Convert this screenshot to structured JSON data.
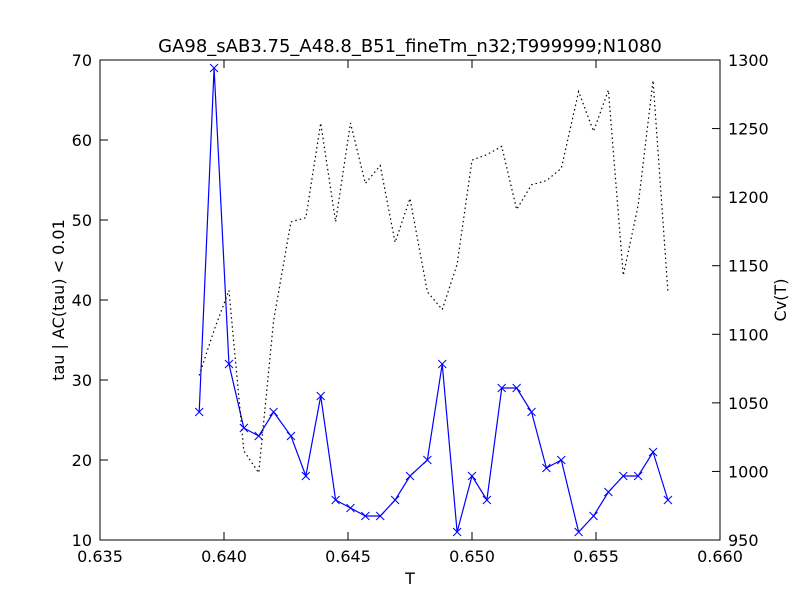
{
  "chart_data": {
    "type": "line",
    "title": "GA98_sAB3.75_A48.8_B51_fineTm_n32;T999999;N1080",
    "xlabel": "T",
    "ylabel": "tau | AC(tau) < 0.01",
    "y2label": "Cv(T)",
    "x": [
      0.639,
      0.6396,
      0.6402,
      0.6408,
      0.6414,
      0.642,
      0.6427,
      0.6433,
      0.6439,
      0.6445,
      0.6451,
      0.6457,
      0.6463,
      0.6469,
      0.6475,
      0.6482,
      0.6488,
      0.6494,
      0.65,
      0.6506,
      0.6512,
      0.6518,
      0.6524,
      0.653,
      0.6536,
      0.6543,
      0.6549,
      0.6555,
      0.6561,
      0.6567,
      0.6573,
      0.6579
    ],
    "series": [
      {
        "color": "#0000ff",
        "marker": "x",
        "linestyle": "solid",
        "values": [
          26,
          69,
          32,
          24,
          23,
          26,
          23,
          18,
          28,
          15,
          14,
          13,
          13,
          15,
          18,
          20,
          32,
          11,
          18,
          15,
          29,
          29,
          26,
          19,
          20,
          11,
          13,
          16,
          18,
          18,
          21,
          15
        ]
      },
      {
        "color": "#000000",
        "linestyle": "dotted",
        "axis": "y2",
        "values": [
          1070,
          1103,
          1132,
          1015,
          999,
          1110,
          1182,
          1185,
          1254,
          1182,
          1254,
          1210,
          1223,
          1167,
          1199,
          1131,
          1118,
          1151,
          1227,
          1231,
          1237,
          1191,
          1209,
          1212,
          1221,
          1277,
          1248,
          1278,
          1143,
          1194,
          1285,
          1131
        ]
      }
    ],
    "xlim": [
      0.635,
      0.66
    ],
    "xticks": [
      {
        "value": 0.635,
        "label": "0.635"
      },
      {
        "value": 0.64,
        "label": "0.640"
      },
      {
        "value": 0.645,
        "label": "0.645"
      },
      {
        "value": 0.65,
        "label": "0.650"
      },
      {
        "value": 0.655,
        "label": "0.655"
      },
      {
        "value": 0.66,
        "label": "0.660"
      }
    ],
    "ylim": [
      10,
      70
    ],
    "yticks": [
      10,
      20,
      30,
      40,
      50,
      60,
      70
    ],
    "y2lim": [
      950,
      1300
    ],
    "y2ticks": [
      950,
      1000,
      1050,
      1100,
      1150,
      1200,
      1250,
      1300
    ],
    "grid": false
  }
}
